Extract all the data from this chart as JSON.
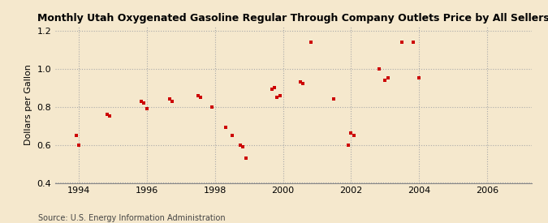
{
  "title": "Monthly Utah Oxygenated Gasoline Regular Through Company Outlets Price by All Sellers",
  "ylabel": "Dollars per Gallon",
  "source": "Source: U.S. Energy Information Administration",
  "background_color": "#f5e8cd",
  "marker_color": "#cc0000",
  "ylim": [
    0.4,
    1.22
  ],
  "xlim": [
    1993.3,
    2007.3
  ],
  "xticks": [
    1994,
    1996,
    1998,
    2000,
    2002,
    2004,
    2006
  ],
  "yticks": [
    0.4,
    0.6,
    0.8,
    1.0,
    1.2
  ],
  "data_points": [
    [
      1993.92,
      0.65
    ],
    [
      1994.0,
      0.6
    ],
    [
      1994.83,
      0.76
    ],
    [
      1994.92,
      0.75
    ],
    [
      1995.83,
      0.83
    ],
    [
      1995.92,
      0.82
    ],
    [
      1996.0,
      0.79
    ],
    [
      1996.67,
      0.84
    ],
    [
      1996.75,
      0.83
    ],
    [
      1997.5,
      0.86
    ],
    [
      1997.58,
      0.85
    ],
    [
      1997.92,
      0.8
    ],
    [
      1998.33,
      0.69
    ],
    [
      1998.5,
      0.65
    ],
    [
      1998.75,
      0.6
    ],
    [
      1998.83,
      0.59
    ],
    [
      1998.92,
      0.53
    ],
    [
      1999.67,
      0.89
    ],
    [
      1999.75,
      0.9
    ],
    [
      1999.83,
      0.85
    ],
    [
      1999.92,
      0.86
    ],
    [
      2000.5,
      0.93
    ],
    [
      2000.58,
      0.92
    ],
    [
      2000.83,
      1.14
    ],
    [
      2001.5,
      0.84
    ],
    [
      2001.92,
      0.6
    ],
    [
      2002.0,
      0.66
    ],
    [
      2002.08,
      0.65
    ],
    [
      2002.83,
      1.0
    ],
    [
      2003.0,
      0.94
    ],
    [
      2003.08,
      0.95
    ],
    [
      2003.5,
      1.14
    ],
    [
      2003.83,
      1.14
    ],
    [
      2004.0,
      0.95
    ]
  ]
}
